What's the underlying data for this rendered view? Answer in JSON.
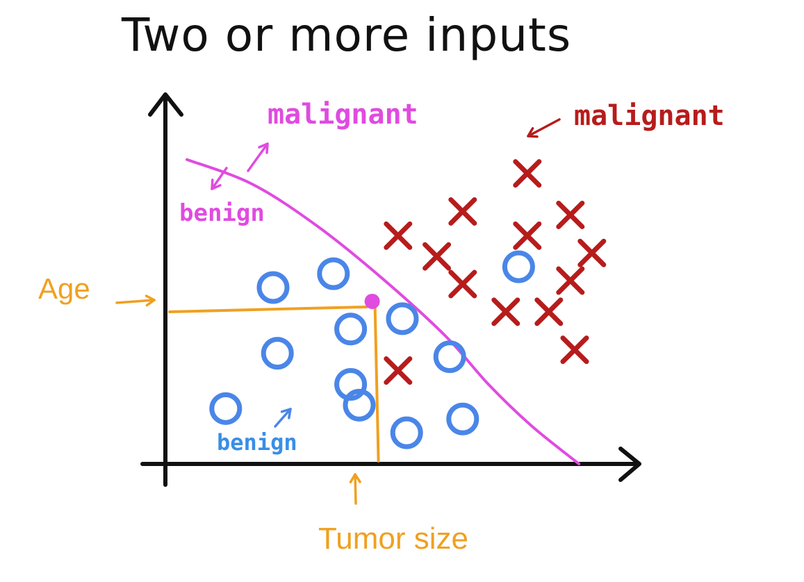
{
  "title": "Two or more inputs",
  "colors": {
    "axis": "#111111",
    "benign": "#4a86e8",
    "malignant": "#b71c1c",
    "boundary": "#e04be0",
    "guide": "#f0a020",
    "title": "#111111"
  },
  "annotations": {
    "boundary_malignant": "malignant",
    "boundary_benign": "benign",
    "cluster_malignant": "malignant",
    "cluster_benign": "benign"
  },
  "chart_data": {
    "type": "scatter",
    "title": "Two or more inputs",
    "xlabel": "Tumor size",
    "ylabel": "Age",
    "xlim": [
      0,
      10
    ],
    "ylim": [
      0,
      10
    ],
    "grid": false,
    "series": [
      {
        "name": "benign",
        "marker": "circle",
        "x": [
          1.4,
          2.5,
          2.6,
          3.9,
          4.3,
          4.3,
          4.5,
          5.5,
          5.6,
          6.6,
          6.9,
          8.2
        ],
        "y": [
          1.6,
          5.1,
          3.2,
          5.5,
          3.9,
          2.3,
          1.7,
          4.2,
          0.9,
          3.1,
          1.3,
          5.7
        ]
      },
      {
        "name": "malignant",
        "marker": "x",
        "x": [
          5.4,
          5.4,
          6.3,
          6.9,
          6.9,
          7.9,
          8.4,
          8.4,
          8.9,
          9.4,
          9.4,
          9.5,
          9.9
        ],
        "y": [
          2.7,
          6.6,
          6.0,
          5.2,
          7.3,
          4.4,
          6.6,
          8.4,
          4.4,
          7.2,
          5.3,
          3.3,
          6.1
        ]
      }
    ],
    "query_point": {
      "x": 4.8,
      "y": 4.7
    },
    "decision_boundary": {
      "x": [
        0.5,
        2.0,
        3.5,
        5.0,
        6.5,
        7.5,
        8.5,
        9.6
      ],
      "y": [
        8.8,
        8.1,
        6.9,
        5.4,
        3.7,
        2.3,
        1.1,
        0.0
      ]
    }
  }
}
